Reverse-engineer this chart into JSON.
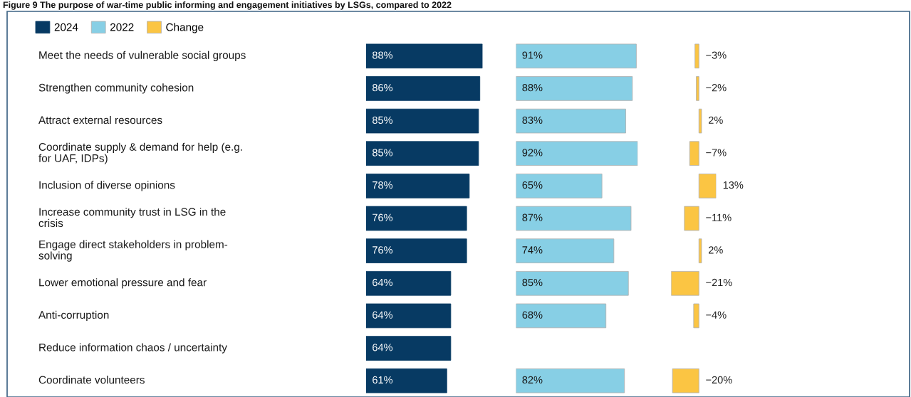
{
  "chart_data": [
    {
      "type": "bar",
      "orientation": "horizontal",
      "title": "Figure 9 The purpose of war-time public informing and engagement initiatives by LSGs, compared to 2022",
      "legend": "top left",
      "tick_labels": "y",
      "categories": [
        "Meet the needs of vulnerable social groups",
        "Strengthen community cohesion",
        "Attract external resources",
        "Coordinate supply & demand for help (e.g.\nfor UAF, IDPs)",
        "Inclusion of diverse opinions",
        "Increase community trust in LSG in the\ncrisis",
        "Engage direct stakeholders in problem-\nsolving",
        "Lower emotional pressure and fear",
        "Anti-corruption",
        "Reduce information chaos / uncertainty",
        "Coordinate volunteers"
      ],
      "series": [
        {
          "name": "2024",
          "color": "#073a63",
          "values": [
            88,
            86,
            85,
            85,
            78,
            76,
            76,
            64,
            64,
            64,
            61
          ],
          "value_labels": [
            "88%",
            "86%",
            "85%",
            "85%",
            "78%",
            "76%",
            "76%",
            "64%",
            "64%",
            "64%",
            "61%"
          ]
        }
      ]
    },
    {
      "type": "bar",
      "orientation": "horizontal",
      "tick_labels": false,
      "categories": [
        null,
        null,
        null,
        null,
        null,
        null,
        null,
        null,
        null,
        null,
        null
      ],
      "series": [
        {
          "name": "2022",
          "color": "#87cfe5",
          "values": [
            91,
            88,
            83,
            92,
            65,
            87,
            74,
            85,
            68,
            null,
            82
          ],
          "value_labels": [
            "91%",
            "88%",
            "83%",
            "92%",
            "65%",
            "87%",
            "74%",
            "85%",
            "68%",
            null,
            "82%"
          ]
        }
      ]
    },
    {
      "type": "bar",
      "orientation": "horizontal",
      "tick_labels": false,
      "categories": [
        null,
        null,
        null,
        null,
        null,
        null,
        null,
        null,
        null,
        null,
        null
      ],
      "series": [
        {
          "name": "Change",
          "color": "#fbc543",
          "values": [
            -3,
            -2,
            2,
            -7,
            13,
            -11,
            2,
            -21,
            -4,
            null,
            -20
          ],
          "value_labels": [
            "−3%",
            "−2%",
            "2%",
            "−7%",
            "13%",
            "−11%",
            "2%",
            "−21%",
            "−4%",
            null,
            "−20%"
          ]
        }
      ]
    }
  ]
}
